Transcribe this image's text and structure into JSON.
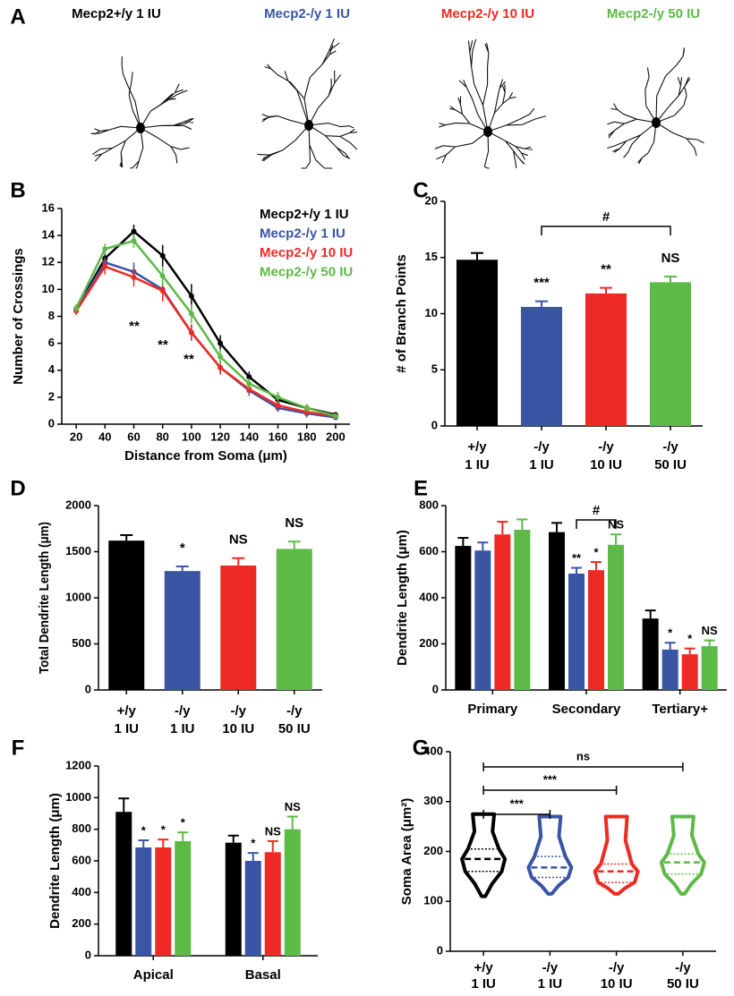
{
  "panel_a": {
    "panel": "A",
    "labels": [
      {
        "text": "Mecp2+/y 1 IU",
        "color": "#000000"
      },
      {
        "text": "Mecp2-/y 1 IU",
        "color": "#3a55a4"
      },
      {
        "text": "Mecp2-/y 10 IU",
        "color": "#ee2a24"
      },
      {
        "text": "Mecp2-/y 50 IU",
        "color": "#5dba47"
      }
    ]
  },
  "chart_data": [
    {
      "panel": "B",
      "type": "line",
      "xlabel": "Distance from Soma (μm)",
      "ylabel": "Number of Crossings",
      "x": [
        20,
        40,
        60,
        80,
        100,
        120,
        140,
        160,
        180,
        200
      ],
      "xlim": [
        10,
        210
      ],
      "xticks": [
        20,
        40,
        60,
        80,
        100,
        120,
        140,
        160,
        180,
        200
      ],
      "ylim": [
        0,
        16
      ],
      "yticks": [
        0,
        2,
        4,
        6,
        8,
        10,
        12,
        14,
        16
      ],
      "series": [
        {
          "name": "Mecp2+/y 1 IU",
          "color": "#000000",
          "values": [
            8.5,
            12.3,
            14.3,
            12.5,
            9.5,
            6.0,
            3.5,
            1.8,
            1.2,
            0.7
          ],
          "errors": [
            0.3,
            0.5,
            0.5,
            0.8,
            0.9,
            0.6,
            0.4,
            0.3,
            0.3,
            0.2
          ]
        },
        {
          "name": "Mecp2-/y 1 IU",
          "color": "#3a55a4",
          "values": [
            8.5,
            12.0,
            11.3,
            10.0,
            6.8,
            4.2,
            2.5,
            1.2,
            0.8,
            0.5
          ],
          "errors": [
            0.3,
            0.4,
            0.7,
            0.7,
            0.6,
            0.5,
            0.4,
            0.3,
            0.3,
            0.2
          ]
        },
        {
          "name": "Mecp2-/y 10 IU",
          "color": "#ee2a24",
          "values": [
            8.4,
            11.7,
            10.9,
            9.9,
            6.8,
            4.2,
            2.6,
            1.4,
            0.9,
            0.6
          ],
          "errors": [
            0.3,
            0.6,
            0.7,
            0.8,
            0.6,
            0.5,
            0.4,
            0.3,
            0.3,
            0.2
          ]
        },
        {
          "name": "Mecp2-/y 50 IU",
          "color": "#5dba47",
          "values": [
            8.6,
            13.0,
            13.6,
            11.0,
            8.2,
            5.0,
            3.0,
            2.0,
            1.2,
            0.6
          ],
          "errors": [
            0.3,
            0.4,
            0.5,
            0.7,
            0.7,
            0.6,
            0.4,
            0.4,
            0.3,
            0.2
          ]
        }
      ],
      "annotations": [
        "**",
        "**",
        "**"
      ]
    },
    {
      "panel": "C",
      "type": "bar",
      "ylabel": "# of Branch Points",
      "categories": [
        [
          "+/y",
          "1 IU"
        ],
        [
          "-/y",
          "1 IU"
        ],
        [
          "-/y",
          "10 IU"
        ],
        [
          "-/y",
          "50 IU"
        ]
      ],
      "colors": [
        "#000000",
        "#3a55a4",
        "#ee2a24",
        "#5dba47"
      ],
      "values": [
        14.8,
        10.6,
        11.8,
        12.8
      ],
      "errors": [
        0.6,
        0.5,
        0.5,
        0.5
      ],
      "ylim": [
        0,
        20
      ],
      "yticks": [
        0,
        5,
        10,
        15,
        20
      ],
      "significance": [
        null,
        "***",
        "**",
        "NS"
      ],
      "brackets": [
        "#"
      ]
    },
    {
      "panel": "D",
      "type": "bar",
      "ylabel": "Total Dendrite Length (μm)",
      "categories": [
        [
          "+/y",
          "1 IU"
        ],
        [
          "-/y",
          "1 IU"
        ],
        [
          "-/y",
          "10 IU"
        ],
        [
          "-/y",
          "50 IU"
        ]
      ],
      "colors": [
        "#000000",
        "#3a55a4",
        "#ee2a24",
        "#5dba47"
      ],
      "values": [
        1620,
        1290,
        1350,
        1530
      ],
      "errors": [
        60,
        50,
        80,
        80
      ],
      "ylim": [
        0,
        2000
      ],
      "yticks": [
        0,
        500,
        1000,
        1500,
        2000
      ],
      "significance": [
        null,
        "*",
        "NS",
        "NS"
      ],
      "brackets": []
    },
    {
      "panel": "E",
      "type": "grouped_bar",
      "ylabel": "Dendrite Length (μm)",
      "categories": [
        "Primary",
        "Secondary",
        "Tertiary+"
      ],
      "ylim": [
        0,
        800
      ],
      "yticks": [
        0,
        200,
        400,
        600,
        800
      ],
      "series": [
        {
          "color": "#000000",
          "values": [
            625,
            685,
            310
          ],
          "errors": [
            35,
            40,
            35
          ],
          "significance": [
            null,
            null,
            null
          ]
        },
        {
          "color": "#3a55a4",
          "values": [
            605,
            505,
            175
          ],
          "errors": [
            35,
            25,
            30
          ],
          "significance": [
            null,
            "**",
            "*"
          ]
        },
        {
          "color": "#ee2a24",
          "values": [
            675,
            520,
            155
          ],
          "errors": [
            55,
            35,
            25
          ],
          "significance": [
            null,
            "*",
            "*"
          ]
        },
        {
          "color": "#5dba47",
          "values": [
            695,
            630,
            190
          ],
          "errors": [
            45,
            45,
            25
          ],
          "significance": [
            null,
            "NS",
            "NS"
          ]
        }
      ],
      "brackets": [
        "#"
      ]
    },
    {
      "panel": "F",
      "type": "grouped_bar",
      "ylabel": "Dendrite Length (μm)",
      "categories": [
        "Apical",
        "Basal"
      ],
      "ylim": [
        0,
        1200
      ],
      "yticks": [
        0,
        200,
        400,
        600,
        800,
        1000,
        1200
      ],
      "series": [
        {
          "color": "#000000",
          "values": [
            910,
            715
          ],
          "errors": [
            85,
            45
          ],
          "significance": [
            null,
            null
          ]
        },
        {
          "color": "#3a55a4",
          "values": [
            685,
            600
          ],
          "errors": [
            45,
            50
          ],
          "significance": [
            "*",
            "*"
          ]
        },
        {
          "color": "#ee2a24",
          "values": [
            685,
            655
          ],
          "errors": [
            50,
            70
          ],
          "significance": [
            "*",
            "NS"
          ]
        },
        {
          "color": "#5dba47",
          "values": [
            725,
            800
          ],
          "errors": [
            55,
            80
          ],
          "significance": [
            "*",
            "NS"
          ]
        }
      ],
      "brackets": []
    },
    {
      "panel": "G",
      "type": "violin",
      "ylabel": "Soma Area (μm²)",
      "categories": [
        [
          "+/y",
          "1 IU"
        ],
        [
          "-/y",
          "1 IU"
        ],
        [
          "-/y",
          "10 IU"
        ],
        [
          "-/y",
          "50 IU"
        ]
      ],
      "colors": [
        "#000000",
        "#3a55a4",
        "#ee2a24",
        "#5dba47"
      ],
      "min": [
        110,
        115,
        115,
        115
      ],
      "q1": [
        160,
        148,
        138,
        155
      ],
      "median": [
        185,
        168,
        160,
        178
      ],
      "q3": [
        205,
        190,
        175,
        195
      ],
      "max": [
        275,
        270,
        270,
        270
      ],
      "ylim": [
        0,
        400
      ],
      "yticks": [
        0,
        100,
        200,
        300,
        400
      ],
      "brackets": [
        "***",
        "***",
        "ns"
      ]
    }
  ]
}
